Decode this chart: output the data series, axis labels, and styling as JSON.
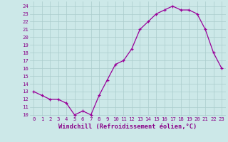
{
  "x": [
    0,
    1,
    2,
    3,
    4,
    5,
    6,
    7,
    8,
    9,
    10,
    11,
    12,
    13,
    14,
    15,
    16,
    17,
    18,
    19,
    20,
    21,
    22,
    23
  ],
  "y": [
    13,
    12.5,
    12,
    12,
    11.5,
    10,
    10.5,
    10,
    12.5,
    14.5,
    16.5,
    17,
    18.5,
    21,
    22,
    23,
    23.5,
    24,
    23.5,
    23.5,
    23,
    21,
    18,
    16
  ],
  "line_color": "#990099",
  "marker": "+",
  "background_color": "#cce8e8",
  "grid_color": "#aacccc",
  "xlabel": "Windchill (Refroidissement éolien,°C)",
  "xlim": [
    -0.5,
    23.5
  ],
  "ylim": [
    9.8,
    24.6
  ],
  "yticks": [
    10,
    11,
    12,
    13,
    14,
    15,
    16,
    17,
    18,
    19,
    20,
    21,
    22,
    23,
    24
  ],
  "xticks": [
    0,
    1,
    2,
    3,
    4,
    5,
    6,
    7,
    8,
    9,
    10,
    11,
    12,
    13,
    14,
    15,
    16,
    17,
    18,
    19,
    20,
    21,
    22,
    23
  ],
  "tick_color": "#880088",
  "tick_fontsize": 5.2,
  "xlabel_fontsize": 6.2
}
